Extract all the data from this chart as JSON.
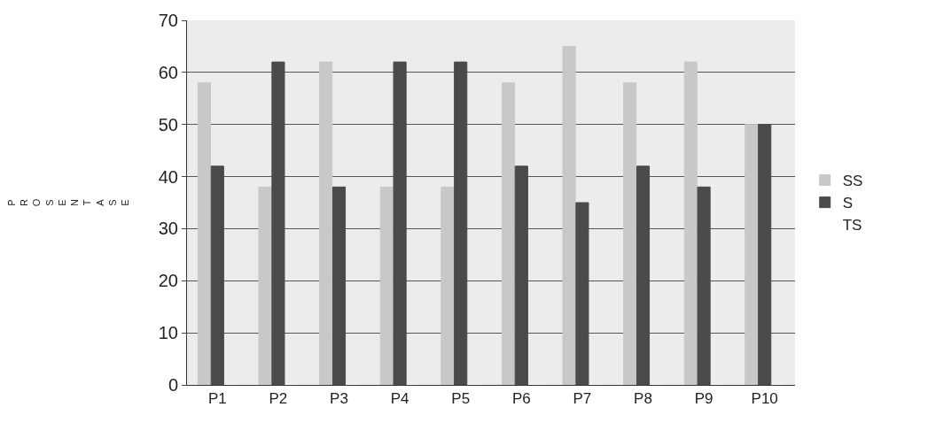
{
  "chart_data": {
    "type": "bar",
    "ylabel": "PROSENTASE",
    "categories": [
      "P1",
      "P2",
      "P3",
      "P4",
      "P5",
      "P6",
      "P7",
      "P8",
      "P9",
      "P10"
    ],
    "series": [
      {
        "name": "SS",
        "color": "#c8c8c8",
        "values": [
          58,
          38,
          62,
          38,
          38,
          58,
          65,
          58,
          62,
          50
        ]
      },
      {
        "name": "S",
        "color": "#4a4a4a",
        "values": [
          42,
          62,
          38,
          62,
          62,
          42,
          35,
          42,
          38,
          50
        ]
      },
      {
        "name": "TS",
        "color": "#ffffff",
        "values": [
          0,
          0,
          0,
          0,
          0,
          0,
          0,
          0,
          0,
          0
        ]
      }
    ],
    "ylim": [
      0,
      70
    ],
    "yticks": [
      0,
      10,
      20,
      30,
      40,
      50,
      60,
      70
    ],
    "grid": "y",
    "legend": "right"
  }
}
